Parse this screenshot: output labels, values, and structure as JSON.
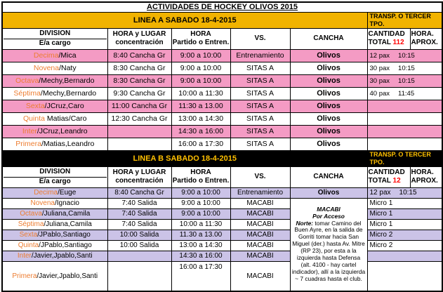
{
  "title": "ACTIVIDADES DE HOCKEY OLIVOS 2015",
  "colors": {
    "gold_banner": "#F1B300",
    "black_banner": "#000000",
    "banner_dark_text": "#FFC000",
    "pink_row": "#F49BC4",
    "purple_row": "#CBC3E7",
    "division_orange": "#ED7D31",
    "red": "#FF0000"
  },
  "sections": [
    {
      "id": "A",
      "shade_hex": "#F49BC4",
      "banner": {
        "label": "LINEA A SABADO 18-4-2015",
        "transp": "TRANSP. O TERCER TPO.",
        "bg": "#F1B300",
        "fg": "#000000"
      },
      "header": {
        "division": "DIVISION",
        "ea_cargo": "E/a cargo",
        "hora_lugar_1": "HORA y LUGAR",
        "hora_lugar_2": "concentración",
        "hora_partido_1": "HORA",
        "hora_partido_2": "Partido o Entren.",
        "vs": "VS.",
        "cancha": "CANCHA",
        "cantidad_1": "CANTIDAD",
        "cantidad_2": "TOTAL",
        "cantidad_total": "112",
        "hora_aprox_1": "HORA.",
        "hora_aprox_2": "APROX."
      },
      "rows": [
        {
          "division_hl": "Decima",
          "division_rest": "/Mica",
          "concentracion": "8:40 Cancha Gr",
          "partido": "9:00 a 10:00",
          "vs": "Entrenamiento",
          "cancha": "Olivos",
          "pax": "12 pax",
          "aprox": "10:15",
          "shaded": true
        },
        {
          "division_hl": "Novena",
          "division_rest": "/Naty",
          "concentracion": "8:30 Cancha Gr",
          "partido": "9:00 a 10:00",
          "vs": "SITAS A",
          "cancha": "Olivos",
          "pax": "30 pax",
          "aprox": "10:15",
          "shaded": false
        },
        {
          "division_hl": "Octava",
          "division_rest": "/Mechy,Bernardo",
          "concentracion": "8:30 Cancha Gr",
          "partido": "9:00 a 10:00",
          "vs": "SITAS A",
          "cancha": "Olivos",
          "pax": "30 pax",
          "aprox": "10:15",
          "shaded": true
        },
        {
          "division_hl": "Séptima",
          "division_rest": "/Mechy,Bernardo",
          "concentracion": "9:30 Cancha Gr",
          "partido": "10:00 a 11:30",
          "vs": "SITAS A",
          "cancha": "Olivos",
          "pax": "40 pax",
          "aprox": "11:45",
          "shaded": false
        },
        {
          "division_hl": "Sexta",
          "division_rest": "/JCruz,Caro",
          "concentracion": "11:00 Cancha Gr",
          "partido": "11:30 a 13.00",
          "vs": "SITAS A",
          "cancha": "Olivos",
          "pax": "",
          "aprox": "",
          "shaded": true
        },
        {
          "division_hl": "Quinta",
          "division_rest": " Matias/Caro",
          "concentracion": "12:30 Cancha Gr",
          "partido": "13:00 a 14:30",
          "vs": "SITAS A",
          "cancha": "Olivos",
          "pax": "",
          "aprox": "",
          "shaded": false
        },
        {
          "division_hl": "Inter",
          "division_rest": "/JCruz,Leandro",
          "concentracion": "",
          "partido": "14:30 a 16:00",
          "vs": "SITAS A",
          "cancha": "Olivos",
          "pax": "",
          "aprox": "",
          "shaded": true
        },
        {
          "division_hl": "Primera",
          "division_rest": "/Matias,Leandro",
          "concentracion": "",
          "partido": "16:00 a 17:30",
          "vs": "SITAS A",
          "cancha": "Olivos",
          "pax": "",
          "aprox": "",
          "shaded": false
        }
      ]
    },
    {
      "id": "B",
      "shade_hex": "#CBC3E7",
      "banner": {
        "label": "LINEA B SABADO 18-4-2015",
        "transp": "TRANSP. O TERCER TPO.",
        "bg": "#000000",
        "fg": "#FFC000"
      },
      "header": {
        "division": "DIVISION",
        "ea_cargo": "E/a cargo",
        "hora_lugar_1": "HORA y LUGAR",
        "hora_lugar_2": "concentración",
        "hora_partido_1": "HORA",
        "hora_partido_2": "Partido o Entren.",
        "vs": "VS.",
        "cancha": "CANCHA",
        "cantidad_1": "CANTIDAD",
        "cantidad_2": "TOTAL",
        "cantidad_total": "12",
        "hora_aprox_1": "HORA.",
        "hora_aprox_2": "APROX."
      },
      "cancha_note": {
        "title": "MACABI",
        "subtitle": "Por Acceso",
        "lead": "Norte:",
        "body": " tomar Camino del Buen Ayre, en la salida de Gorriti tomar hacia San Miguel (der.) hasta Av. Mitre (RP 23), por esta a la izquierda hasta Defensa (alt. 4100 - hay cartel indicador), allí a la izquierda ~ 7 cuadras hasta el club."
      },
      "rows": [
        {
          "division_hl": "Decima",
          "division_rest": "/Euge",
          "concentracion": "8:40 Cancha Gr",
          "partido": "9:00 a 10:00",
          "vs": "Entrenamiento",
          "cancha": "Olivos",
          "pax": "12 pax",
          "aprox": "10:15",
          "shaded": true
        },
        {
          "division_hl": "Novena",
          "division_rest": "/Ignacio",
          "concentracion": "7:40 Salida",
          "partido": "9:00 a 10:00",
          "vs": "MACABI",
          "pax": "Micro 1",
          "aprox": "",
          "shaded": false
        },
        {
          "division_hl": "Octava",
          "division_rest": "/Juliana,Camila",
          "concentracion": "7:40 Salida",
          "partido": "9:00 a 10:00",
          "vs": "MACABI",
          "pax": "Micro 1",
          "aprox": "",
          "shaded": true
        },
        {
          "division_hl": "Séptima",
          "division_rest": "/Juliana,Camila",
          "concentracion": "7:40 Salida",
          "partido": "10:00 a 11:30",
          "vs": "MACABI",
          "pax": "Micro 1",
          "aprox": "",
          "shaded": false
        },
        {
          "division_hl": "Sexta",
          "division_rest": "/JPablo,Santiago",
          "concentracion": "10:00 Salida",
          "partido": "11.30 a 13.00",
          "vs": "MACABI",
          "pax": "Micro 2",
          "aprox": "",
          "shaded": true
        },
        {
          "division_hl": "Quinta",
          "division_rest": "/JPablo,Santiago",
          "concentracion": "10:00 Salida",
          "partido": "13:00 a 14:30",
          "vs": "MACABI",
          "pax": "Micro 2",
          "aprox": "",
          "shaded": false
        },
        {
          "division_hl": "Inter",
          "division_rest": "/Javier,Jpablo,Santi",
          "concentracion": "",
          "partido": "14:30 a 16:00",
          "vs": "MACABI",
          "pax": "",
          "aprox": "",
          "shaded": true
        },
        {
          "division_hl": "Primera",
          "division_rest": "/Javier,Jpablo,Santi",
          "concentracion": "",
          "partido": "16:00 a 17:30",
          "vs": "MACABI",
          "pax": "",
          "aprox": "",
          "shaded": false,
          "tall": true
        }
      ]
    }
  ]
}
